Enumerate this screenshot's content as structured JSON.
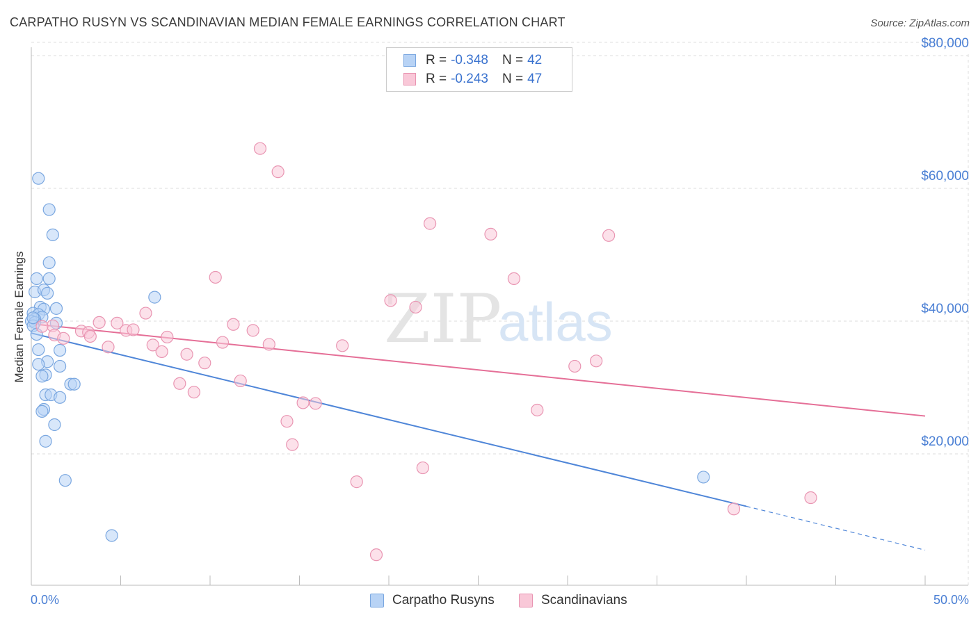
{
  "header": {
    "title": "CARPATHO RUSYN VS SCANDINAVIAN MEDIAN FEMALE EARNINGS CORRELATION CHART",
    "source": "Source: ZipAtlas.com"
  },
  "watermark": {
    "zip": "ZIP",
    "atlas": "atlas"
  },
  "legend_top": [
    {
      "r_label": "R = ",
      "r_value": "-0.348",
      "n_label": "N = ",
      "n_value": "42",
      "color": "#b8d3f5",
      "border": "#7aa7e0"
    },
    {
      "r_label": "R = ",
      "r_value": "-0.243",
      "n_label": "N = ",
      "n_value": "47",
      "color": "#f9c8d8",
      "border": "#e995b2"
    }
  ],
  "legend_bottom": [
    {
      "label": "Carpatho Rusyns",
      "color": "#b8d3f5",
      "border": "#7aa7e0"
    },
    {
      "label": "Scandinavians",
      "color": "#f9c8d8",
      "border": "#e995b2"
    }
  ],
  "chart_data": {
    "type": "scatter",
    "ylabel": "Median Female Earnings",
    "xlim": [
      0,
      50
    ],
    "ylim": [
      0,
      80000
    ],
    "x_tick_labels": [
      "0.0%",
      "50.0%"
    ],
    "y_ticks": [
      20000,
      40000,
      60000,
      80000
    ],
    "y_tick_labels": [
      "$20,000",
      "$40,000",
      "$60,000",
      "$80,000"
    ],
    "grid": true,
    "colors": {
      "blue": "#4f86d8",
      "pink": "#e56f97",
      "blue_fill": "#b8d3f5",
      "pink_fill": "#f9c8d8"
    },
    "series": [
      {
        "name": "Carpatho Rusyns",
        "color": "#4f86d8",
        "points": [
          [
            0.4,
            61500
          ],
          [
            1.0,
            56800
          ],
          [
            1.2,
            53000
          ],
          [
            1.0,
            48800
          ],
          [
            0.3,
            46400
          ],
          [
            1.0,
            46400
          ],
          [
            0.2,
            44400
          ],
          [
            0.7,
            44700
          ],
          [
            0.9,
            44200
          ],
          [
            6.9,
            43600
          ],
          [
            0.5,
            42100
          ],
          [
            0.7,
            41800
          ],
          [
            1.4,
            41900
          ],
          [
            0.1,
            41200
          ],
          [
            0.4,
            41000
          ],
          [
            0.6,
            40600
          ],
          [
            0.2,
            40300
          ],
          [
            0.0,
            40000
          ],
          [
            0.2,
            39800
          ],
          [
            1.4,
            39700
          ],
          [
            0.1,
            39300
          ],
          [
            0.3,
            38000
          ],
          [
            0.4,
            35700
          ],
          [
            1.6,
            35600
          ],
          [
            0.9,
            33900
          ],
          [
            0.4,
            33500
          ],
          [
            1.6,
            33200
          ],
          [
            0.8,
            31900
          ],
          [
            0.6,
            31700
          ],
          [
            2.2,
            30500
          ],
          [
            2.4,
            30500
          ],
          [
            0.8,
            28900
          ],
          [
            1.1,
            28900
          ],
          [
            1.6,
            28500
          ],
          [
            0.7,
            26700
          ],
          [
            0.6,
            26400
          ],
          [
            1.3,
            24400
          ],
          [
            0.8,
            21900
          ],
          [
            1.9,
            16000
          ],
          [
            4.5,
            7700
          ],
          [
            37.6,
            16500
          ],
          [
            0.1,
            40500
          ]
        ],
        "trend": {
          "x": [
            0,
            40
          ],
          "y": [
            38200,
            12100
          ]
        },
        "trend_dashed": {
          "x": [
            40,
            50
          ],
          "y": [
            12100,
            5500
          ]
        }
      },
      {
        "name": "Scandinavians",
        "color": "#e56f97",
        "points": [
          [
            12.8,
            66000
          ],
          [
            13.8,
            62500
          ],
          [
            22.3,
            54700
          ],
          [
            25.7,
            53100
          ],
          [
            32.3,
            52900
          ],
          [
            10.3,
            46600
          ],
          [
            27.0,
            46400
          ],
          [
            20.1,
            43100
          ],
          [
            21.5,
            42100
          ],
          [
            6.4,
            41200
          ],
          [
            3.8,
            39800
          ],
          [
            4.8,
            39700
          ],
          [
            11.3,
            39500
          ],
          [
            1.2,
            39300
          ],
          [
            0.6,
            39200
          ],
          [
            2.8,
            38500
          ],
          [
            5.3,
            38600
          ],
          [
            5.7,
            38700
          ],
          [
            12.4,
            38600
          ],
          [
            3.2,
            38300
          ],
          [
            1.3,
            37900
          ],
          [
            1.8,
            37400
          ],
          [
            3.3,
            37700
          ],
          [
            7.6,
            37600
          ],
          [
            10.7,
            36800
          ],
          [
            13.3,
            36500
          ],
          [
            17.4,
            36300
          ],
          [
            6.8,
            36400
          ],
          [
            4.3,
            36100
          ],
          [
            7.3,
            35400
          ],
          [
            8.7,
            35000
          ],
          [
            9.7,
            33700
          ],
          [
            30.4,
            33200
          ],
          [
            31.6,
            34000
          ],
          [
            11.7,
            31000
          ],
          [
            8.3,
            30600
          ],
          [
            9.1,
            29300
          ],
          [
            15.2,
            27700
          ],
          [
            15.9,
            27600
          ],
          [
            28.3,
            26600
          ],
          [
            14.3,
            24900
          ],
          [
            14.6,
            21400
          ],
          [
            18.2,
            15800
          ],
          [
            21.9,
            17900
          ],
          [
            19.3,
            4800
          ],
          [
            39.3,
            11700
          ],
          [
            43.6,
            13400
          ]
        ],
        "trend": {
          "x": [
            0,
            50
          ],
          "y": [
            39600,
            25700
          ]
        }
      }
    ]
  }
}
